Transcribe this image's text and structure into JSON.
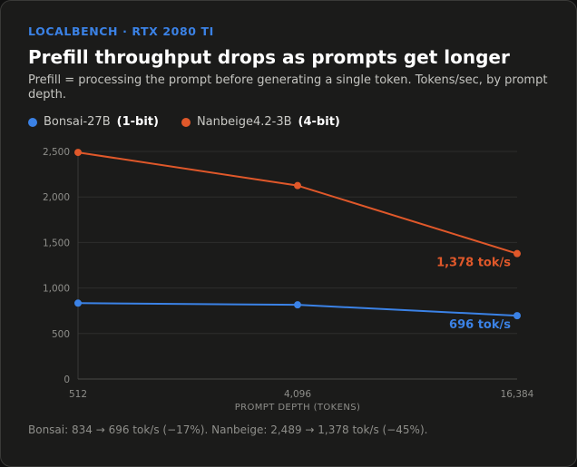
{
  "header": {
    "eyebrow": "LOCALBENCH · RTX 2080 TI",
    "title": "Prefill throughput drops as prompts get longer",
    "subtitle": "Prefill = processing the prompt before generating a single token. Tokens/sec, by prompt depth."
  },
  "legend": [
    {
      "name": "Bonsai-27B",
      "tag": "(1-bit)",
      "color": "#3b82e6"
    },
    {
      "name": "Nanbeige4.2-3B",
      "tag": "(4-bit)",
      "color": "#e0582a"
    }
  ],
  "footer": "Bonsai: 834 → 696 tok/s (−17%). Nanbeige: 2,489 → 1,378 tok/s (−45%).",
  "chart_data": {
    "type": "line",
    "x": [
      "512",
      "4,096",
      "16,384"
    ],
    "xlabel": "PROMPT DEPTH (TOKENS)",
    "ylabel": "",
    "ylim": [
      0,
      2500
    ],
    "yticks": [
      "0",
      "500",
      "1,000",
      "1,500",
      "2,000",
      "2,500"
    ],
    "grid": true,
    "series": [
      {
        "name": "Bonsai-27B (1-bit)",
        "values": [
          834,
          815,
          696
        ],
        "color": "#3b82e6",
        "end_label": "696 tok/s"
      },
      {
        "name": "Nanbeige4.2-3B (4-bit)",
        "values": [
          2489,
          2125,
          1378
        ],
        "color": "#e0582a",
        "end_label": "1,378 tok/s"
      }
    ]
  }
}
